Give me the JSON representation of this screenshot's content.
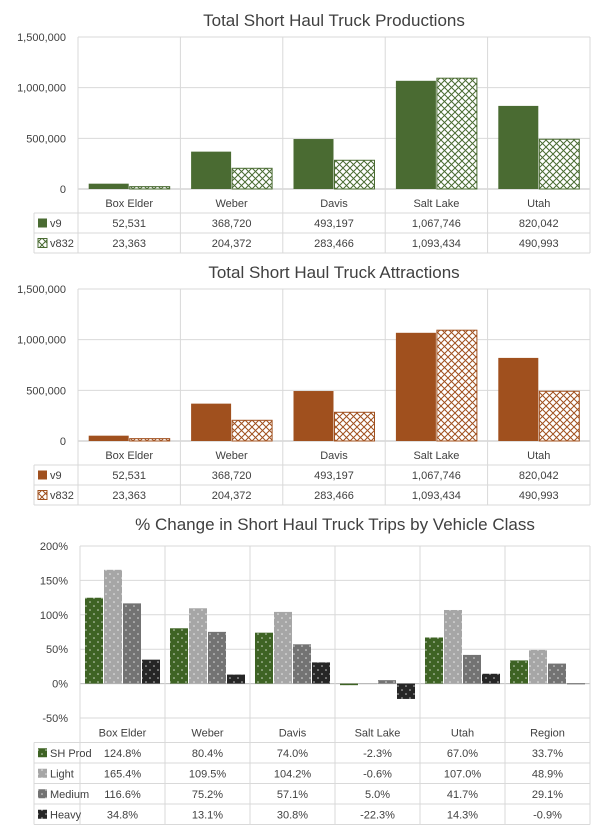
{
  "chart_data": [
    {
      "type": "bar",
      "title": "Total Short Haul Truck Productions",
      "categories": [
        "Box Elder",
        "Weber",
        "Davis",
        "Salt Lake",
        "Utah"
      ],
      "ylim": [
        0,
        1500000
      ],
      "yticks": [
        "1,500,000",
        "1,000,000",
        "500,000",
        "0"
      ],
      "series": [
        {
          "name": "v9",
          "values": [
            52531,
            368720,
            493197,
            1067746,
            820042
          ],
          "labels": [
            "52,531",
            "368,720",
            "493,197",
            "1,067,746",
            "820,042"
          ],
          "color": "#4a6b32",
          "pattern": "solid"
        },
        {
          "name": "v832",
          "values": [
            23363,
            204372,
            283466,
            1093434,
            490993
          ],
          "labels": [
            "23,363",
            "204,372",
            "283,466",
            "1,093,434",
            "490,993"
          ],
          "color": "#4a6b32",
          "pattern": "crosshatch"
        }
      ],
      "grid": true,
      "legend": "data table"
    },
    {
      "type": "bar",
      "title": "Total Short Haul Truck Attractions",
      "categories": [
        "Box Elder",
        "Weber",
        "Davis",
        "Salt Lake",
        "Utah"
      ],
      "ylim": [
        0,
        1500000
      ],
      "yticks": [
        "1,500,000",
        "1,000,000",
        "500,000",
        "0"
      ],
      "series": [
        {
          "name": "v9",
          "values": [
            52531,
            368720,
            493197,
            1067746,
            820042
          ],
          "labels": [
            "52,531",
            "368,720",
            "493,197",
            "1,067,746",
            "820,042"
          ],
          "color": "#a0501e",
          "pattern": "solid"
        },
        {
          "name": "v832",
          "values": [
            23363,
            204372,
            283466,
            1093434,
            490993
          ],
          "labels": [
            "23,363",
            "204,372",
            "283,466",
            "1,093,434",
            "490,993"
          ],
          "color": "#a0501e",
          "pattern": "crosshatch"
        }
      ],
      "grid": true,
      "legend": "data table"
    },
    {
      "type": "bar",
      "title": "% Change in Short Haul Truck Trips by Vehicle Class",
      "categories": [
        "Box Elder",
        "Weber",
        "Davis",
        "Salt Lake",
        "Utah",
        "Region"
      ],
      "ylim": [
        -50,
        200
      ],
      "yticks": [
        "200%",
        "150%",
        "100%",
        "50%",
        "0%",
        "-50%"
      ],
      "series": [
        {
          "name": "SH Prod",
          "values": [
            124.8,
            80.4,
            74.0,
            -2.3,
            67.0,
            33.7
          ],
          "labels": [
            "124.8%",
            "80.4%",
            "74.0%",
            "-2.3%",
            "67.0%",
            "33.7%"
          ],
          "color": "#3e6324",
          "pattern": "dots"
        },
        {
          "name": "Light",
          "values": [
            165.4,
            109.5,
            104.2,
            -0.6,
            107.0,
            48.9
          ],
          "labels": [
            "165.4%",
            "109.5%",
            "104.2%",
            "-0.6%",
            "107.0%",
            "48.9%"
          ],
          "color": "#a6a6a6",
          "pattern": "dots"
        },
        {
          "name": "Medium",
          "values": [
            116.6,
            75.2,
            57.1,
            5.0,
            41.7,
            29.1
          ],
          "labels": [
            "116.6%",
            "75.2%",
            "57.1%",
            "5.0%",
            "41.7%",
            "29.1%"
          ],
          "color": "#737373",
          "pattern": "dots"
        },
        {
          "name": "Heavy",
          "values": [
            34.8,
            13.1,
            30.8,
            -22.3,
            14.3,
            -0.9
          ],
          "labels": [
            "34.8%",
            "13.1%",
            "30.8%",
            "-22.3%",
            "14.3%",
            "-0.9%"
          ],
          "color": "#262626",
          "pattern": "dots"
        }
      ],
      "grid": true,
      "legend": "data table"
    }
  ]
}
